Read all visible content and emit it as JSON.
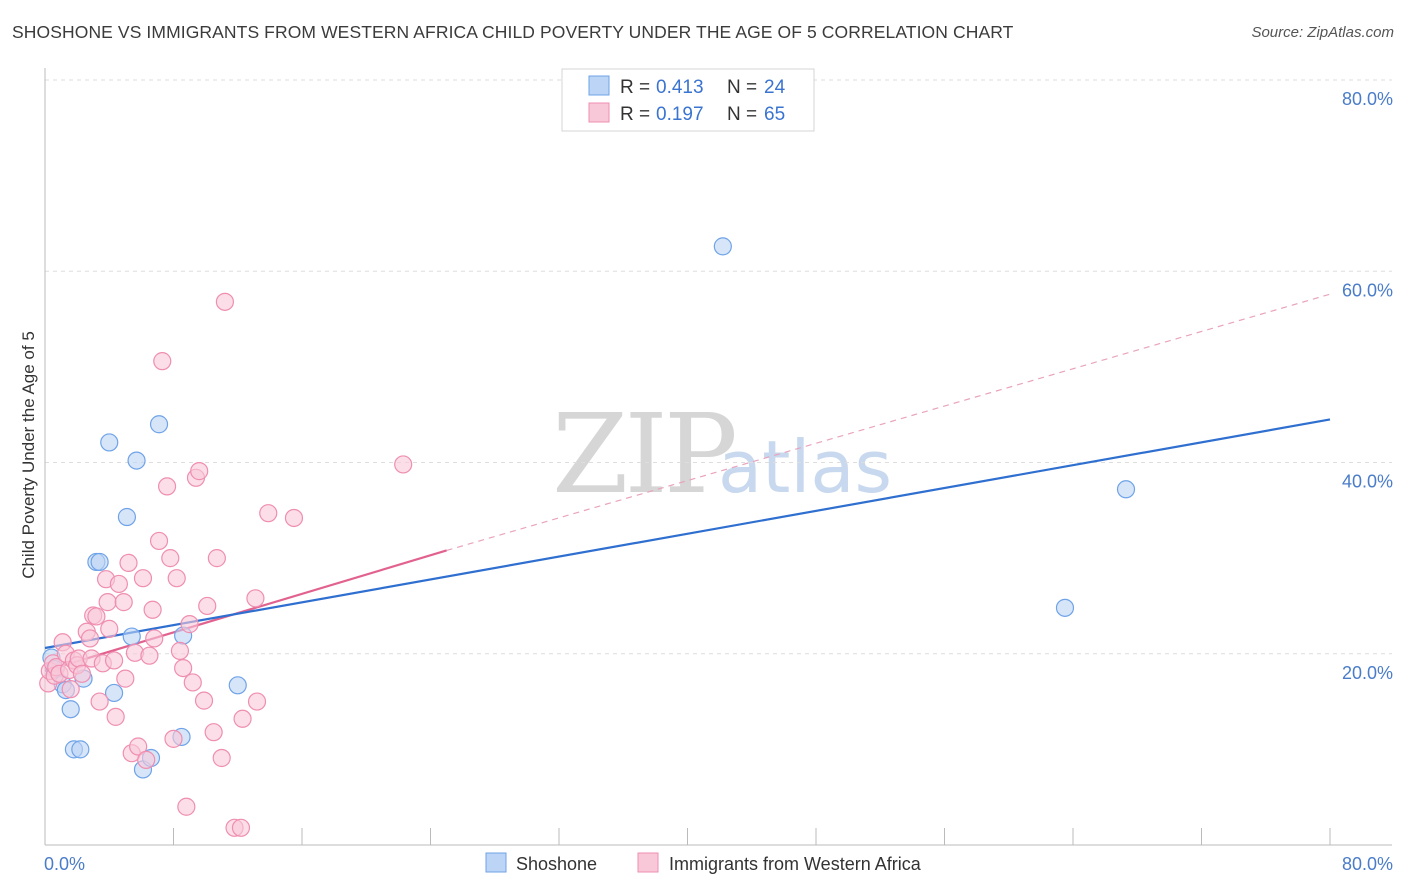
{
  "title": "SHOSHONE VS IMMIGRANTS FROM WESTERN AFRICA CHILD POVERTY UNDER THE AGE OF 5 CORRELATION CHART",
  "source": "Source: ZipAtlas.com",
  "watermark": {
    "part1": "ZIP",
    "part2": "atlas"
  },
  "legend": {
    "r_label": "R =",
    "n_label": "N =",
    "series1": {
      "r": "0.413",
      "n": "24"
    },
    "series2": {
      "r": "0.197",
      "n": "65"
    }
  },
  "chart_data": {
    "type": "scatter",
    "ylabel": "Child Poverty Under the Age of 5",
    "xlim": [
      0,
      80
    ],
    "ylim": [
      0,
      80
    ],
    "x_tick_labels": [
      "0.0%",
      "80.0%"
    ],
    "y_ticks": [
      {
        "value": 20,
        "label": "20.0%"
      },
      {
        "value": 40,
        "label": "40.0%"
      },
      {
        "value": 60,
        "label": "60.0%"
      },
      {
        "value": 80,
        "label": "80.0%"
      }
    ],
    "series": [
      {
        "name": "Shoshone",
        "color": "#6fa3e8",
        "fill": "#bcd4f5",
        "trend": {
          "x0": 0,
          "y0": 20.6,
          "x1": 80,
          "y1": 44.5,
          "color": "#2f6fd0"
        },
        "points": [
          [
            0.4,
            19.6
          ],
          [
            0.6,
            18.4
          ],
          [
            1.1,
            16.8
          ],
          [
            1.3,
            16.2
          ],
          [
            1.6,
            14.2
          ],
          [
            1.8,
            10.0
          ],
          [
            2.2,
            10.0
          ],
          [
            2.4,
            17.4
          ],
          [
            3.2,
            29.6
          ],
          [
            3.4,
            29.6
          ],
          [
            4.0,
            42.1
          ],
          [
            4.3,
            15.9
          ],
          [
            5.1,
            34.3
          ],
          [
            5.4,
            21.8
          ],
          [
            5.7,
            40.2
          ],
          [
            6.1,
            7.9
          ],
          [
            6.6,
            9.1
          ],
          [
            7.1,
            44.0
          ],
          [
            8.5,
            11.3
          ],
          [
            8.6,
            21.9
          ],
          [
            12.0,
            16.7
          ],
          [
            42.2,
            62.6
          ],
          [
            63.5,
            24.8
          ],
          [
            67.3,
            37.2
          ]
        ]
      },
      {
        "name": "Immigrants from Western Africa",
        "color": "#ef8eb0",
        "fill": "#f8c8d8",
        "trend": {
          "x0": 0,
          "y0": 18.2,
          "x1": 25,
          "y1": 30.8,
          "color": "#e2628f"
        },
        "trend_ext": {
          "x0": 25,
          "y0": 30.8,
          "x1": 80,
          "y1": 57.6
        },
        "points": [
          [
            0.2,
            16.9
          ],
          [
            0.3,
            18.2
          ],
          [
            0.5,
            19.0
          ],
          [
            0.6,
            17.7
          ],
          [
            0.7,
            18.6
          ],
          [
            0.9,
            17.9
          ],
          [
            1.1,
            21.2
          ],
          [
            1.3,
            20.0
          ],
          [
            1.5,
            18.3
          ],
          [
            1.6,
            16.3
          ],
          [
            1.8,
            19.3
          ],
          [
            2.0,
            18.8
          ],
          [
            2.1,
            19.5
          ],
          [
            2.3,
            17.9
          ],
          [
            2.6,
            22.3
          ],
          [
            2.8,
            21.6
          ],
          [
            2.9,
            19.5
          ],
          [
            3.0,
            24.0
          ],
          [
            3.2,
            23.9
          ],
          [
            3.4,
            15.0
          ],
          [
            3.6,
            19.0
          ],
          [
            3.8,
            27.8
          ],
          [
            3.9,
            25.4
          ],
          [
            4.0,
            22.6
          ],
          [
            4.3,
            19.3
          ],
          [
            4.4,
            13.4
          ],
          [
            4.6,
            27.3
          ],
          [
            4.9,
            25.4
          ],
          [
            5.0,
            17.4
          ],
          [
            5.2,
            29.5
          ],
          [
            5.4,
            9.6
          ],
          [
            5.6,
            20.1
          ],
          [
            5.8,
            10.3
          ],
          [
            6.1,
            27.9
          ],
          [
            6.3,
            8.9
          ],
          [
            6.5,
            19.8
          ],
          [
            6.7,
            24.6
          ],
          [
            6.8,
            21.6
          ],
          [
            7.1,
            31.8
          ],
          [
            7.3,
            50.6
          ],
          [
            7.6,
            37.5
          ],
          [
            7.8,
            30.0
          ],
          [
            8.0,
            11.1
          ],
          [
            8.2,
            27.9
          ],
          [
            8.4,
            20.3
          ],
          [
            8.6,
            18.5
          ],
          [
            8.8,
            4.0
          ],
          [
            9.0,
            23.1
          ],
          [
            9.2,
            17.0
          ],
          [
            9.4,
            38.4
          ],
          [
            9.6,
            39.1
          ],
          [
            9.9,
            15.1
          ],
          [
            10.1,
            25.0
          ],
          [
            10.5,
            11.8
          ],
          [
            11.0,
            9.1
          ],
          [
            11.2,
            56.8
          ],
          [
            11.8,
            1.8
          ],
          [
            12.2,
            1.8
          ],
          [
            12.3,
            13.2
          ],
          [
            13.1,
            25.8
          ],
          [
            13.2,
            15.0
          ],
          [
            13.9,
            34.7
          ],
          [
            15.5,
            34.2
          ],
          [
            22.3,
            39.8
          ],
          [
            10.7,
            30.0
          ]
        ]
      }
    ]
  }
}
